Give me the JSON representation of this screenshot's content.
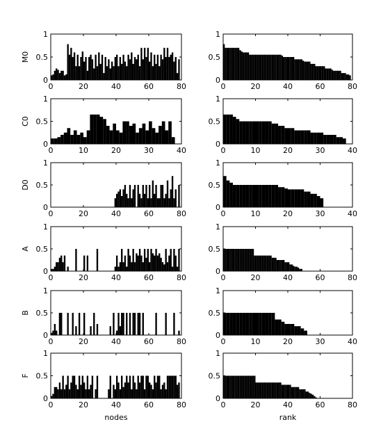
{
  "chart_data": [
    {
      "type": "bar",
      "panel": "M0 nodes",
      "ylabel": "M0",
      "xlabel": "",
      "xlim": [
        0,
        80
      ],
      "ylim": [
        0,
        1
      ],
      "xticks": [
        0,
        20,
        40,
        60,
        80
      ],
      "yticks": [
        0,
        0.5,
        1
      ],
      "values": [
        0.1,
        0.12,
        0.2,
        0.25,
        0.22,
        0.15,
        0.2,
        0.2,
        0.1,
        0.12,
        0.78,
        0.55,
        0.7,
        0.5,
        0.6,
        0.3,
        0.55,
        0.3,
        0.5,
        0.62,
        0.4,
        0.5,
        0.2,
        0.5,
        0.55,
        0.45,
        0.25,
        0.55,
        0.3,
        0.6,
        0.35,
        0.55,
        0.15,
        0.5,
        0.3,
        0.45,
        0.25,
        0.4,
        0.3,
        0.5,
        0.55,
        0.3,
        0.5,
        0.35,
        0.55,
        0.4,
        0.3,
        0.55,
        0.45,
        0.6,
        0.35,
        0.5,
        0.45,
        0.55,
        0.3,
        0.7,
        0.45,
        0.7,
        0.5,
        0.7,
        0.4,
        0.6,
        0.3,
        0.55,
        0.35,
        0.55,
        0.3,
        0.55,
        0.45,
        0.7,
        0.5,
        0.7,
        0.5,
        0.55,
        0.6,
        0.4,
        0.5,
        0.15,
        0.45
      ]
    },
    {
      "type": "bar",
      "panel": "M0 rank",
      "ylabel": "",
      "xlabel": "",
      "xlim": [
        0,
        80
      ],
      "ylim": [
        0,
        1
      ],
      "xticks": [
        0,
        20,
        40,
        60,
        80
      ],
      "yticks": [
        0,
        0.5,
        1
      ],
      "values": [
        0.78,
        0.7,
        0.7,
        0.7,
        0.7,
        0.7,
        0.7,
        0.7,
        0.7,
        0.7,
        0.65,
        0.62,
        0.6,
        0.6,
        0.6,
        0.6,
        0.55,
        0.55,
        0.55,
        0.55,
        0.55,
        0.55,
        0.55,
        0.55,
        0.55,
        0.55,
        0.55,
        0.55,
        0.55,
        0.55,
        0.55,
        0.55,
        0.55,
        0.55,
        0.55,
        0.55,
        0.53,
        0.5,
        0.5,
        0.5,
        0.5,
        0.5,
        0.5,
        0.5,
        0.45,
        0.45,
        0.45,
        0.45,
        0.45,
        0.42,
        0.4,
        0.4,
        0.4,
        0.4,
        0.35,
        0.35,
        0.35,
        0.3,
        0.3,
        0.3,
        0.3,
        0.3,
        0.3,
        0.25,
        0.25,
        0.25,
        0.25,
        0.22,
        0.2,
        0.2,
        0.2,
        0.2,
        0.2,
        0.15,
        0.15,
        0.15,
        0.12,
        0.12,
        0.1
      ]
    },
    {
      "type": "bar",
      "panel": "C0 nodes",
      "ylabel": "C0",
      "xlabel": "",
      "xlim": [
        0,
        40
      ],
      "ylim": [
        0,
        1
      ],
      "xticks": [
        0,
        10,
        20,
        30,
        40
      ],
      "yticks": [
        0,
        0.5,
        1
      ],
      "values": [
        0.12,
        0.12,
        0.15,
        0.2,
        0.25,
        0.35,
        0.2,
        0.3,
        0.2,
        0.25,
        0.15,
        0.3,
        0.65,
        0.65,
        0.65,
        0.6,
        0.55,
        0.4,
        0.3,
        0.45,
        0.3,
        0.25,
        0.5,
        0.5,
        0.4,
        0.45,
        0.25,
        0.35,
        0.45,
        0.3,
        0.5,
        0.35,
        0.25,
        0.4,
        0.5,
        0.3,
        0.5,
        0.15
      ]
    },
    {
      "type": "bar",
      "panel": "C0 rank",
      "ylabel": "",
      "xlabel": "",
      "xlim": [
        0,
        40
      ],
      "ylim": [
        0,
        1
      ],
      "xticks": [
        0,
        10,
        20,
        30,
        40
      ],
      "yticks": [
        0,
        0.5,
        1
      ],
      "values": [
        0.65,
        0.65,
        0.65,
        0.6,
        0.55,
        0.5,
        0.5,
        0.5,
        0.5,
        0.5,
        0.5,
        0.5,
        0.5,
        0.5,
        0.5,
        0.45,
        0.45,
        0.4,
        0.4,
        0.35,
        0.35,
        0.35,
        0.3,
        0.3,
        0.3,
        0.3,
        0.3,
        0.25,
        0.25,
        0.25,
        0.25,
        0.2,
        0.2,
        0.2,
        0.2,
        0.15,
        0.15,
        0.12
      ]
    },
    {
      "type": "bar",
      "panel": "D0 nodes",
      "ylabel": "D0",
      "xlabel": "",
      "xlim": [
        0,
        80
      ],
      "ylim": [
        0,
        1
      ],
      "xticks": [
        0,
        20,
        40,
        60,
        80
      ],
      "yticks": [
        0,
        0.5,
        1
      ],
      "values": [
        0,
        0,
        0,
        0,
        0,
        0,
        0,
        0,
        0,
        0,
        0,
        0,
        0,
        0,
        0,
        0,
        0,
        0,
        0,
        0,
        0,
        0,
        0,
        0,
        0,
        0,
        0,
        0,
        0,
        0,
        0,
        0,
        0,
        0,
        0,
        0,
        0,
        0,
        0,
        0.2,
        0.3,
        0.35,
        0.4,
        0.25,
        0.4,
        0.5,
        0.3,
        0.2,
        0.5,
        0.2,
        0.4,
        0.5,
        0,
        0.5,
        0.3,
        0.2,
        0.5,
        0.3,
        0.5,
        0.2,
        0.5,
        0.2,
        0.6,
        0.3,
        0.5,
        0.2,
        0.2,
        0.5,
        0.5,
        0.2,
        0.3,
        0.6,
        0.2,
        0.4,
        0.7,
        0.2,
        0.4,
        0,
        0.5
      ]
    },
    {
      "type": "bar",
      "panel": "D0 rank",
      "ylabel": "",
      "xlabel": "",
      "xlim": [
        0,
        40
      ],
      "ylim": [
        0,
        1
      ],
      "xticks": [
        0,
        10,
        20,
        30,
        40
      ],
      "yticks": [
        0,
        0.5,
        1
      ],
      "values": [
        0.7,
        0.6,
        0.55,
        0.5,
        0.5,
        0.5,
        0.5,
        0.5,
        0.5,
        0.5,
        0.5,
        0.5,
        0.5,
        0.5,
        0.5,
        0.5,
        0.5,
        0.45,
        0.45,
        0.42,
        0.4,
        0.4,
        0.4,
        0.4,
        0.4,
        0.35,
        0.35,
        0.3,
        0.3,
        0.25,
        0.2
      ]
    },
    {
      "type": "bar",
      "panel": "A nodes",
      "ylabel": "A",
      "xlabel": "",
      "xlim": [
        0,
        80
      ],
      "ylim": [
        0,
        1
      ],
      "xticks": [
        0,
        20,
        40,
        60,
        80
      ],
      "yticks": [
        0,
        0.5,
        1
      ],
      "values": [
        0.05,
        0.05,
        0.1,
        0.2,
        0.2,
        0.3,
        0.35,
        0.2,
        0.35,
        0,
        0.1,
        0,
        0,
        0,
        0,
        0.5,
        0,
        0,
        0,
        0,
        0.35,
        0,
        0.35,
        0,
        0,
        0,
        0,
        0,
        0.5,
        0,
        0,
        0,
        0,
        0,
        0,
        0,
        0,
        0,
        0,
        0.1,
        0.35,
        0.1,
        0.2,
        0.5,
        0.2,
        0.35,
        0.1,
        0.5,
        0.35,
        0.2,
        0.5,
        0.2,
        0.4,
        0.35,
        0.5,
        0.35,
        0.2,
        0.5,
        0.3,
        0.5,
        0.2,
        0.5,
        0.4,
        0.35,
        0.5,
        0.35,
        0.4,
        0.3,
        0.2,
        0.15,
        0.5,
        0.2,
        0.35,
        0.5,
        0.1,
        0.5,
        0.35,
        0.1,
        0.5
      ]
    },
    {
      "type": "bar",
      "panel": "A rank",
      "ylabel": "",
      "xlabel": "",
      "xlim": [
        0,
        80
      ],
      "ylim": [
        0,
        1
      ],
      "xticks": [
        0,
        20,
        40,
        60,
        80
      ],
      "yticks": [
        0,
        0.5,
        1
      ],
      "values": [
        0.5,
        0.5,
        0.5,
        0.5,
        0.5,
        0.5,
        0.5,
        0.5,
        0.5,
        0.5,
        0.5,
        0.5,
        0.5,
        0.5,
        0.5,
        0.5,
        0.5,
        0.5,
        0.5,
        0.35,
        0.35,
        0.35,
        0.35,
        0.35,
        0.35,
        0.35,
        0.35,
        0.35,
        0.35,
        0.35,
        0.3,
        0.3,
        0.3,
        0.25,
        0.25,
        0.25,
        0.25,
        0.25,
        0.2,
        0.2,
        0.2,
        0.15,
        0.15,
        0.12,
        0.1,
        0.1,
        0.08,
        0.05,
        0.05
      ]
    },
    {
      "type": "bar",
      "panel": "B nodes",
      "ylabel": "B",
      "xlabel": "",
      "xlim": [
        0,
        80
      ],
      "ylim": [
        0,
        1
      ],
      "xticks": [
        0,
        20,
        40,
        60,
        80
      ],
      "yticks": [
        0,
        0.5,
        1
      ],
      "values": [
        0.05,
        0.1,
        0.25,
        0.1,
        0,
        0.5,
        0.5,
        0,
        0,
        0,
        0.5,
        0,
        0,
        0.5,
        0,
        0.2,
        0,
        0.5,
        0,
        0,
        0.5,
        0,
        0,
        0,
        0.2,
        0,
        0.5,
        0,
        0.25,
        0,
        0,
        0,
        0,
        0,
        0,
        0,
        0.2,
        0,
        0.5,
        0,
        0.1,
        0.5,
        0.2,
        0.5,
        0.5,
        0,
        0.5,
        0,
        0.5,
        0,
        0.5,
        0.5,
        0,
        0.5,
        0.5,
        0,
        0.5,
        0,
        0,
        0,
        0,
        0,
        0,
        0,
        0.5,
        0,
        0,
        0,
        0,
        0,
        0.5,
        0,
        0,
        0,
        0,
        0.5,
        0,
        0,
        0.1
      ]
    },
    {
      "type": "bar",
      "panel": "B rank",
      "ylabel": "",
      "xlabel": "",
      "xlim": [
        0,
        40
      ],
      "ylim": [
        0,
        1
      ],
      "xticks": [
        0,
        10,
        20,
        30,
        40
      ],
      "yticks": [
        0,
        0.5,
        1
      ],
      "values": [
        0.5,
        0.5,
        0.5,
        0.5,
        0.5,
        0.5,
        0.5,
        0.5,
        0.5,
        0.5,
        0.5,
        0.5,
        0.5,
        0.5,
        0.5,
        0.5,
        0.35,
        0.35,
        0.3,
        0.25,
        0.25,
        0.25,
        0.2,
        0.2,
        0.15,
        0.1
      ]
    },
    {
      "type": "bar",
      "panel": "F nodes",
      "ylabel": "F",
      "xlabel": "nodes",
      "xlim": [
        0,
        80
      ],
      "ylim": [
        0,
        1
      ],
      "xticks": [
        0,
        20,
        40,
        60,
        80
      ],
      "yticks": [
        0,
        0.5,
        1
      ],
      "values": [
        0.05,
        0.1,
        0.25,
        0.25,
        0.2,
        0.35,
        0.2,
        0.5,
        0.2,
        0.3,
        0.5,
        0.2,
        0.35,
        0.5,
        0.5,
        0.3,
        0.2,
        0.5,
        0.3,
        0.5,
        0.35,
        0.2,
        0.5,
        0.2,
        0.3,
        0.5,
        0,
        0.2,
        0.5,
        0,
        0,
        0,
        0,
        0,
        0,
        0.2,
        0.5,
        0,
        0.3,
        0.2,
        0.5,
        0.35,
        0.2,
        0.5,
        0.25,
        0.35,
        0.5,
        0.35,
        0.5,
        0.2,
        0.5,
        0.35,
        0.2,
        0.5,
        0.35,
        0.5,
        0.5,
        0.2,
        0.5,
        0.5,
        0.35,
        0.3,
        0.2,
        0.5,
        0.35,
        0.5,
        0.5,
        0.2,
        0.3,
        0.35,
        0.2,
        0.5,
        0.5,
        0.5,
        0.5,
        0.5,
        0.5,
        0.3,
        0.35
      ]
    },
    {
      "type": "bar",
      "panel": "F rank",
      "ylabel": "",
      "xlabel": "rank",
      "xlim": [
        0,
        80
      ],
      "ylim": [
        0,
        1
      ],
      "xticks": [
        0,
        20,
        40,
        60,
        80
      ],
      "yticks": [
        0,
        0.5,
        1
      ],
      "values": [
        0.5,
        0.5,
        0.5,
        0.5,
        0.5,
        0.5,
        0.5,
        0.5,
        0.5,
        0.5,
        0.5,
        0.5,
        0.5,
        0.5,
        0.5,
        0.5,
        0.5,
        0.5,
        0.5,
        0.5,
        0.35,
        0.35,
        0.35,
        0.35,
        0.35,
        0.35,
        0.35,
        0.35,
        0.35,
        0.35,
        0.35,
        0.35,
        0.35,
        0.35,
        0.35,
        0.35,
        0.3,
        0.3,
        0.3,
        0.3,
        0.3,
        0.3,
        0.25,
        0.25,
        0.25,
        0.25,
        0.25,
        0.2,
        0.2,
        0.2,
        0.2,
        0.15,
        0.15,
        0.12,
        0.1,
        0.08,
        0.05,
        0.02
      ]
    }
  ]
}
